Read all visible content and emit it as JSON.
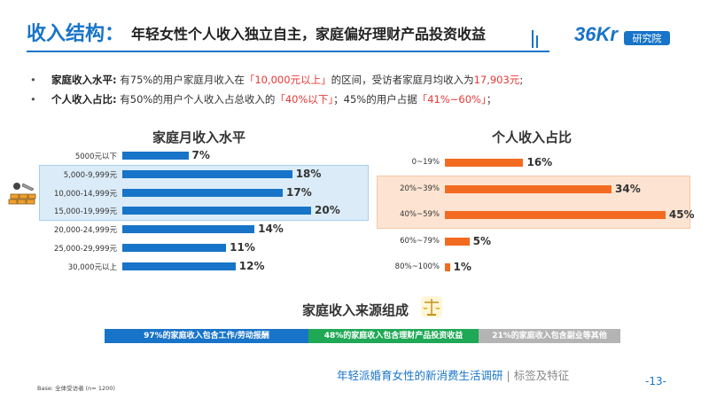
{
  "header": {
    "title": "收入结构：",
    "subtitle": "年轻女性个人收入独立自主，家庭偏好理财产品投资收益",
    "logo_text": "36Kr",
    "logo_sub": "研究院"
  },
  "bullets": [
    {
      "label": "家庭收入水平:",
      "pre": " 有75%的用户家庭月收入在",
      "hl1": "「10,000元以上」",
      "mid": "的区间，受访者家庭月均收入为",
      "hl2": "17,903元",
      "post": ";"
    },
    {
      "label": "个人收入占比:",
      "pre": " 有50%的用户个人收入占总收入的",
      "hl1": "「40%以下」",
      "mid": "；45%的用户占据",
      "hl2": "「41%~60%」",
      "post": "；"
    }
  ],
  "chart_data": [
    {
      "type": "bar",
      "orientation": "horizontal",
      "title": "家庭月收入水平",
      "categories": [
        "5000元以下",
        "5,000-9,999元",
        "10,000-14,999元",
        "15,000-19,999元",
        "20,000-24,999元",
        "25,000-29,999元",
        "30,000元以上"
      ],
      "values": [
        7,
        18,
        17,
        20,
        14,
        11,
        12
      ],
      "labels": [
        "7%",
        "18%",
        "17%",
        "20%",
        "14%",
        "11%",
        "12%"
      ],
      "highlighted": [
        1,
        2,
        3
      ],
      "unit": "%",
      "color": "#1874c8"
    },
    {
      "type": "bar",
      "orientation": "horizontal",
      "title": "个人收入占比",
      "categories": [
        "0~19%",
        "20%~39%",
        "40%~59%",
        "60%~79%",
        "80%~100%"
      ],
      "values": [
        16,
        34,
        45,
        5,
        1
      ],
      "labels": [
        "16%",
        "34%",
        "45%",
        "5%",
        "1%"
      ],
      "highlighted": [
        1,
        2
      ],
      "unit": "%",
      "color": "#f36b21"
    },
    {
      "type": "bar",
      "orientation": "horizontal-stacked",
      "title": "家庭收入来源组成",
      "segments": [
        {
          "label": "97%的家庭收入包含工作/劳动报酬",
          "value": 97,
          "color": "#1874c8"
        },
        {
          "label": "48%的家庭收入包含理财产品投资收益",
          "value": 48,
          "color": "#1fa855"
        },
        {
          "label": "21%的家庭收入包含副业等其他",
          "value": 21,
          "color": "#b4b4b4"
        }
      ]
    }
  ],
  "footer": {
    "report": "年轻派婚育女性的新消费生活调研",
    "separator": "|",
    "tag": "标签及特征",
    "page": "-13-",
    "base": "Base: 全体受访者 (n= 1200)"
  }
}
